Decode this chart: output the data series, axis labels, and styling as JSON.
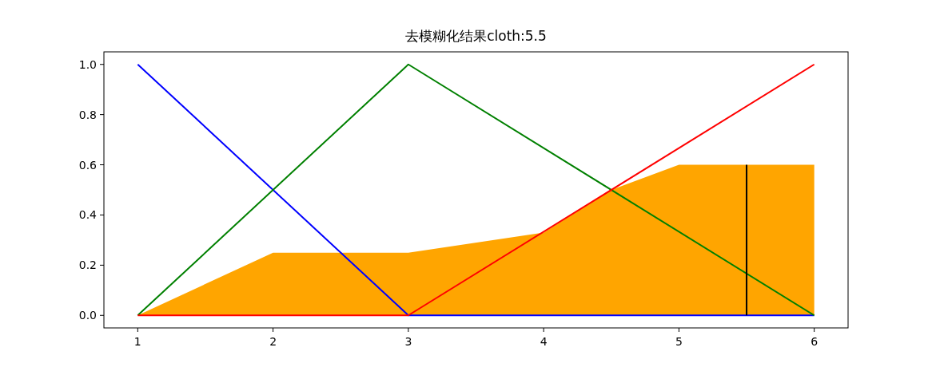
{
  "chart_data": {
    "type": "line",
    "title": "去模糊化结果cloth:5.5",
    "xlim": [
      0.75,
      6.25
    ],
    "ylim": [
      -0.05,
      1.05
    ],
    "xticks": [
      1,
      2,
      3,
      4,
      5,
      6
    ],
    "yticks": [
      {
        "value": 0,
        "label": "0.0"
      },
      {
        "value": 0.2,
        "label": "0.2"
      },
      {
        "value": 0.4,
        "label": "0.4"
      },
      {
        "value": 0.6,
        "label": "0.6"
      },
      {
        "value": 0.8,
        "label": "0.8"
      },
      {
        "value": 1,
        "label": "1.0"
      }
    ],
    "series": [
      {
        "type": "area",
        "color": "#ffa500",
        "x": [
          1,
          2,
          3,
          4,
          4.5,
          5,
          6
        ],
        "values": [
          0,
          0.25,
          0.25,
          0.33,
          0.5,
          0.6,
          0.6
        ]
      },
      {
        "type": "line",
        "color": "#0000ff",
        "x": [
          1,
          3,
          6
        ],
        "values": [
          1,
          0,
          0
        ]
      },
      {
        "type": "line",
        "color": "#008000",
        "x": [
          1,
          3,
          6
        ],
        "values": [
          0,
          1,
          0
        ]
      },
      {
        "type": "line",
        "color": "#ff0000",
        "x": [
          1,
          3,
          6
        ],
        "values": [
          0,
          0,
          1
        ]
      },
      {
        "type": "line",
        "color": "#000000",
        "x": [
          5.5,
          5.5
        ],
        "values": [
          0,
          0.6
        ]
      }
    ]
  }
}
